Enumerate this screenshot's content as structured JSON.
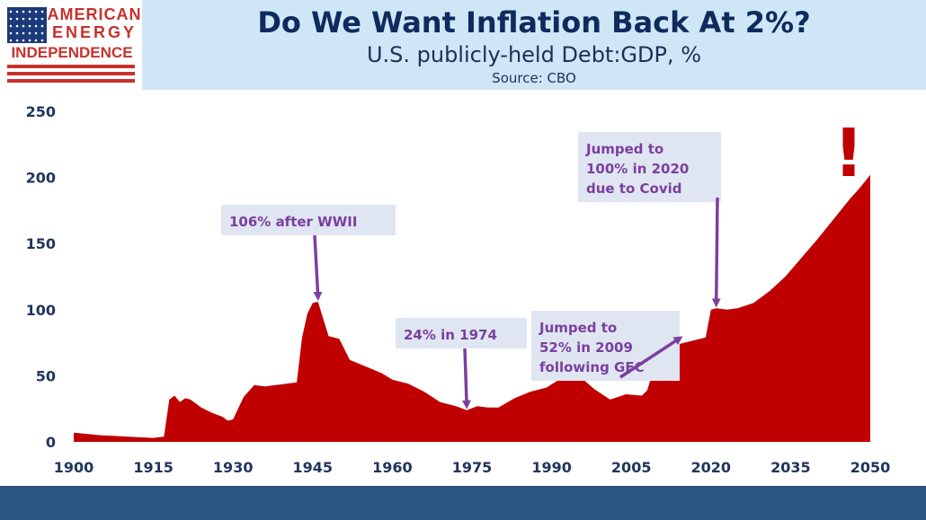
{
  "logo": {
    "line1": "AMERICAN",
    "line2": "ENERGY",
    "line3": "INDEPENDENCE",
    "flag_blue": "#1b3a7a",
    "flag_red": "#c8312b"
  },
  "header": {
    "title": "Do We Want Inflation Back At 2%?",
    "subtitle": "U.S. publicly-held  Debt:GDP, %",
    "source": "Source: CBO"
  },
  "colors": {
    "area": "#c00000",
    "annotation": "#7b3fa0",
    "annotation_box": "#dfe6f1",
    "axis_text": "#1f3560",
    "header_bg": "#cfe6f7",
    "footer_bg": "#2a5781"
  },
  "chart_data": {
    "type": "area",
    "ylim": [
      0,
      250
    ],
    "xlim": [
      1900,
      2050
    ],
    "yticks": [
      0,
      50,
      100,
      150,
      200,
      250
    ],
    "xticks": [
      1900,
      1915,
      1930,
      1945,
      1960,
      1975,
      1990,
      2005,
      2020,
      2035,
      2050
    ],
    "grid": false,
    "points": [
      [
        1900,
        7
      ],
      [
        1905,
        5
      ],
      [
        1910,
        4
      ],
      [
        1915,
        3
      ],
      [
        1917,
        4
      ],
      [
        1918,
        32
      ],
      [
        1919,
        35
      ],
      [
        1920,
        30
      ],
      [
        1921,
        33
      ],
      [
        1922,
        32
      ],
      [
        1924,
        26
      ],
      [
        1926,
        22
      ],
      [
        1928,
        19
      ],
      [
        1929,
        16
      ],
      [
        1930,
        17
      ],
      [
        1932,
        34
      ],
      [
        1934,
        43
      ],
      [
        1936,
        42
      ],
      [
        1938,
        43
      ],
      [
        1940,
        44
      ],
      [
        1942,
        45
      ],
      [
        1943,
        79
      ],
      [
        1944,
        97
      ],
      [
        1945,
        105
      ],
      [
        1946,
        106
      ],
      [
        1948,
        80
      ],
      [
        1950,
        78
      ],
      [
        1952,
        62
      ],
      [
        1955,
        57
      ],
      [
        1958,
        52
      ],
      [
        1960,
        47
      ],
      [
        1963,
        44
      ],
      [
        1966,
        38
      ],
      [
        1969,
        30
      ],
      [
        1972,
        27
      ],
      [
        1974,
        24
      ],
      [
        1976,
        27
      ],
      [
        1978,
        26
      ],
      [
        1980,
        26
      ],
      [
        1983,
        33
      ],
      [
        1986,
        38
      ],
      [
        1989,
        41
      ],
      [
        1991,
        46
      ],
      [
        1993,
        48
      ],
      [
        1996,
        47
      ],
      [
        1998,
        40
      ],
      [
        2001,
        32
      ],
      [
        2004,
        36
      ],
      [
        2007,
        35
      ],
      [
        2008,
        39
      ],
      [
        2009,
        52
      ],
      [
        2010,
        61
      ],
      [
        2011,
        68
      ],
      [
        2012,
        71
      ],
      [
        2014,
        74
      ],
      [
        2016,
        76
      ],
      [
        2019,
        79
      ],
      [
        2020,
        100
      ],
      [
        2021,
        101
      ],
      [
        2023,
        100
      ],
      [
        2025,
        101
      ],
      [
        2028,
        105
      ],
      [
        2031,
        114
      ],
      [
        2034,
        125
      ],
      [
        2037,
        139
      ],
      [
        2040,
        153
      ],
      [
        2043,
        168
      ],
      [
        2046,
        183
      ],
      [
        2048,
        192
      ],
      [
        2050,
        202
      ]
    ],
    "annotations": [
      {
        "lines": [
          "106% after WWII"
        ],
        "target": [
          1946,
          106
        ]
      },
      {
        "lines": [
          "24% in 1974"
        ],
        "target": [
          1974,
          24
        ]
      },
      {
        "lines": [
          "Jumped to",
          "52% in 2009",
          "following GFC"
        ],
        "target": [
          2014,
          74
        ]
      },
      {
        "lines": [
          "Jumped to",
          "100% in 2020",
          "due to Covid"
        ],
        "target": [
          2021,
          101
        ]
      }
    ],
    "exclamation": "!"
  }
}
